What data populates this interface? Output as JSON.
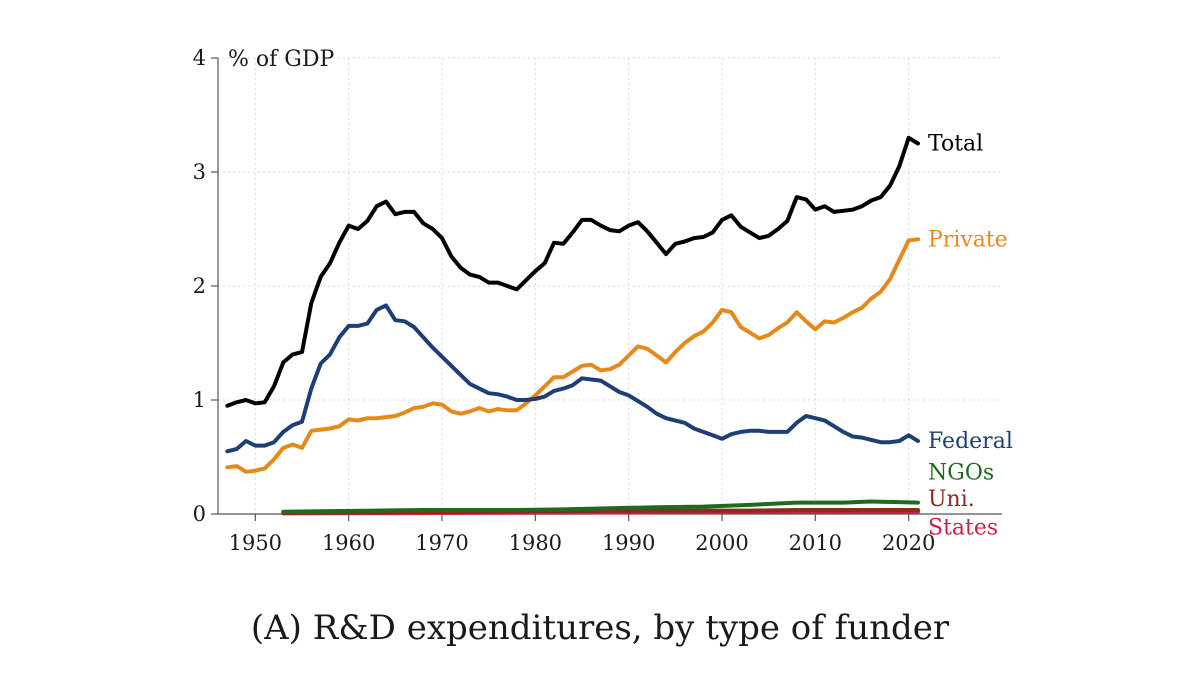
{
  "caption": {
    "panel": "(A)",
    "text": "R&D expenditures, by type of funder"
  },
  "chart_data": {
    "type": "line",
    "title": "",
    "ylabel": "% of GDP",
    "xlabel": "",
    "xlim": [
      1946,
      2030
    ],
    "ylim": [
      0,
      4
    ],
    "xticks": [
      1950,
      1960,
      1970,
      1980,
      1990,
      2000,
      2010,
      2020
    ],
    "yticks": [
      0,
      1,
      2,
      3,
      4
    ],
    "grid": true,
    "legend": "inline labels at line ends",
    "series": [
      {
        "name": "Total",
        "color": "#000000",
        "x": [
          1947,
          1948,
          1949,
          1950,
          1951,
          1952,
          1953,
          1954,
          1955,
          1956,
          1957,
          1958,
          1959,
          1960,
          1961,
          1962,
          1963,
          1964,
          1965,
          1966,
          1967,
          1968,
          1969,
          1970,
          1971,
          1972,
          1973,
          1974,
          1975,
          1976,
          1977,
          1978,
          1979,
          1980,
          1981,
          1982,
          1983,
          1984,
          1985,
          1986,
          1987,
          1988,
          1989,
          1990,
          1991,
          1992,
          1993,
          1994,
          1995,
          1996,
          1997,
          1998,
          1999,
          2000,
          2001,
          2002,
          2003,
          2004,
          2005,
          2006,
          2007,
          2008,
          2009,
          2010,
          2011,
          2012,
          2013,
          2014,
          2015,
          2016,
          2017,
          2018,
          2019,
          2020,
          2021
        ],
        "y": [
          0.95,
          0.98,
          1.0,
          0.97,
          0.98,
          1.12,
          1.33,
          1.4,
          1.42,
          1.85,
          2.08,
          2.2,
          2.38,
          2.53,
          2.5,
          2.57,
          2.7,
          2.74,
          2.63,
          2.65,
          2.65,
          2.55,
          2.5,
          2.42,
          2.26,
          2.16,
          2.1,
          2.08,
          2.03,
          2.03,
          2.0,
          1.97,
          2.05,
          2.13,
          2.2,
          2.38,
          2.37,
          2.47,
          2.58,
          2.58,
          2.53,
          2.49,
          2.48,
          2.53,
          2.56,
          2.48,
          2.38,
          2.28,
          2.37,
          2.39,
          2.42,
          2.43,
          2.47,
          2.58,
          2.62,
          2.52,
          2.47,
          2.42,
          2.44,
          2.5,
          2.57,
          2.78,
          2.76,
          2.67,
          2.7,
          2.65,
          2.66,
          2.67,
          2.7,
          2.75,
          2.78,
          2.88,
          3.05,
          3.3,
          3.25
        ]
      },
      {
        "name": "Private",
        "color": "#e58a1a",
        "x": [
          1947,
          1948,
          1949,
          1950,
          1951,
          1952,
          1953,
          1954,
          1955,
          1956,
          1957,
          1958,
          1959,
          1960,
          1961,
          1962,
          1963,
          1964,
          1965,
          1966,
          1967,
          1968,
          1969,
          1970,
          1971,
          1972,
          1973,
          1974,
          1975,
          1976,
          1977,
          1978,
          1979,
          1980,
          1981,
          1982,
          1983,
          1984,
          1985,
          1986,
          1987,
          1988,
          1989,
          1990,
          1991,
          1992,
          1993,
          1994,
          1995,
          1996,
          1997,
          1998,
          1999,
          2000,
          2001,
          2002,
          2003,
          2004,
          2005,
          2006,
          2007,
          2008,
          2009,
          2010,
          2011,
          2012,
          2013,
          2014,
          2015,
          2016,
          2017,
          2018,
          2019,
          2020,
          2021
        ],
        "y": [
          0.41,
          0.42,
          0.37,
          0.38,
          0.4,
          0.48,
          0.58,
          0.61,
          0.58,
          0.73,
          0.74,
          0.75,
          0.77,
          0.83,
          0.82,
          0.84,
          0.84,
          0.85,
          0.86,
          0.89,
          0.93,
          0.94,
          0.97,
          0.96,
          0.9,
          0.88,
          0.9,
          0.93,
          0.9,
          0.92,
          0.91,
          0.91,
          0.97,
          1.04,
          1.12,
          1.2,
          1.2,
          1.25,
          1.3,
          1.31,
          1.26,
          1.27,
          1.31,
          1.39,
          1.47,
          1.45,
          1.39,
          1.33,
          1.42,
          1.5,
          1.56,
          1.6,
          1.68,
          1.79,
          1.77,
          1.64,
          1.59,
          1.54,
          1.57,
          1.63,
          1.68,
          1.77,
          1.69,
          1.62,
          1.69,
          1.68,
          1.72,
          1.77,
          1.81,
          1.89,
          1.95,
          2.06,
          2.23,
          2.4,
          2.41
        ]
      },
      {
        "name": "Federal",
        "color": "#1d3f73",
        "x": [
          1947,
          1948,
          1949,
          1950,
          1951,
          1952,
          1953,
          1954,
          1955,
          1956,
          1957,
          1958,
          1959,
          1960,
          1961,
          1962,
          1963,
          1964,
          1965,
          1966,
          1967,
          1968,
          1969,
          1970,
          1971,
          1972,
          1973,
          1974,
          1975,
          1976,
          1977,
          1978,
          1979,
          1980,
          1981,
          1982,
          1983,
          1984,
          1985,
          1986,
          1987,
          1988,
          1989,
          1990,
          1991,
          1992,
          1993,
          1994,
          1995,
          1996,
          1997,
          1998,
          1999,
          2000,
          2001,
          2002,
          2003,
          2004,
          2005,
          2006,
          2007,
          2008,
          2009,
          2010,
          2011,
          2012,
          2013,
          2014,
          2015,
          2016,
          2017,
          2018,
          2019,
          2020,
          2021
        ],
        "y": [
          0.55,
          0.57,
          0.64,
          0.6,
          0.6,
          0.63,
          0.72,
          0.78,
          0.81,
          1.1,
          1.32,
          1.4,
          1.55,
          1.65,
          1.65,
          1.67,
          1.79,
          1.83,
          1.7,
          1.69,
          1.64,
          1.55,
          1.46,
          1.38,
          1.3,
          1.22,
          1.14,
          1.1,
          1.06,
          1.05,
          1.03,
          1.0,
          1.0,
          1.01,
          1.03,
          1.08,
          1.1,
          1.13,
          1.19,
          1.18,
          1.17,
          1.12,
          1.07,
          1.04,
          0.99,
          0.94,
          0.88,
          0.84,
          0.82,
          0.8,
          0.75,
          0.72,
          0.69,
          0.66,
          0.7,
          0.72,
          0.73,
          0.73,
          0.72,
          0.72,
          0.72,
          0.8,
          0.86,
          0.84,
          0.82,
          0.77,
          0.72,
          0.68,
          0.67,
          0.65,
          0.63,
          0.63,
          0.64,
          0.69,
          0.64
        ]
      },
      {
        "name": "NGOs",
        "color": "#1e6b1e",
        "x": [
          1953,
          1958,
          1963,
          1968,
          1973,
          1978,
          1983,
          1988,
          1993,
          1998,
          2003,
          2008,
          2013,
          2016,
          2021
        ],
        "y": [
          0.02,
          0.025,
          0.03,
          0.035,
          0.035,
          0.035,
          0.04,
          0.05,
          0.06,
          0.065,
          0.08,
          0.1,
          0.1,
          0.11,
          0.1
        ]
      },
      {
        "name": "Uni.",
        "color": "#8e2a1c",
        "x": [
          1953,
          1963,
          1973,
          1983,
          1993,
          2003,
          2008,
          2013,
          2021
        ],
        "y": [
          0.01,
          0.015,
          0.02,
          0.025,
          0.03,
          0.03,
          0.035,
          0.035,
          0.035
        ]
      },
      {
        "name": "States",
        "color": "#cc1f48",
        "x": [
          1953,
          1963,
          1973,
          1983,
          1993,
          2003,
          2013,
          2021
        ],
        "y": [
          0.005,
          0.008,
          0.01,
          0.012,
          0.015,
          0.017,
          0.02,
          0.02
        ]
      }
    ]
  }
}
